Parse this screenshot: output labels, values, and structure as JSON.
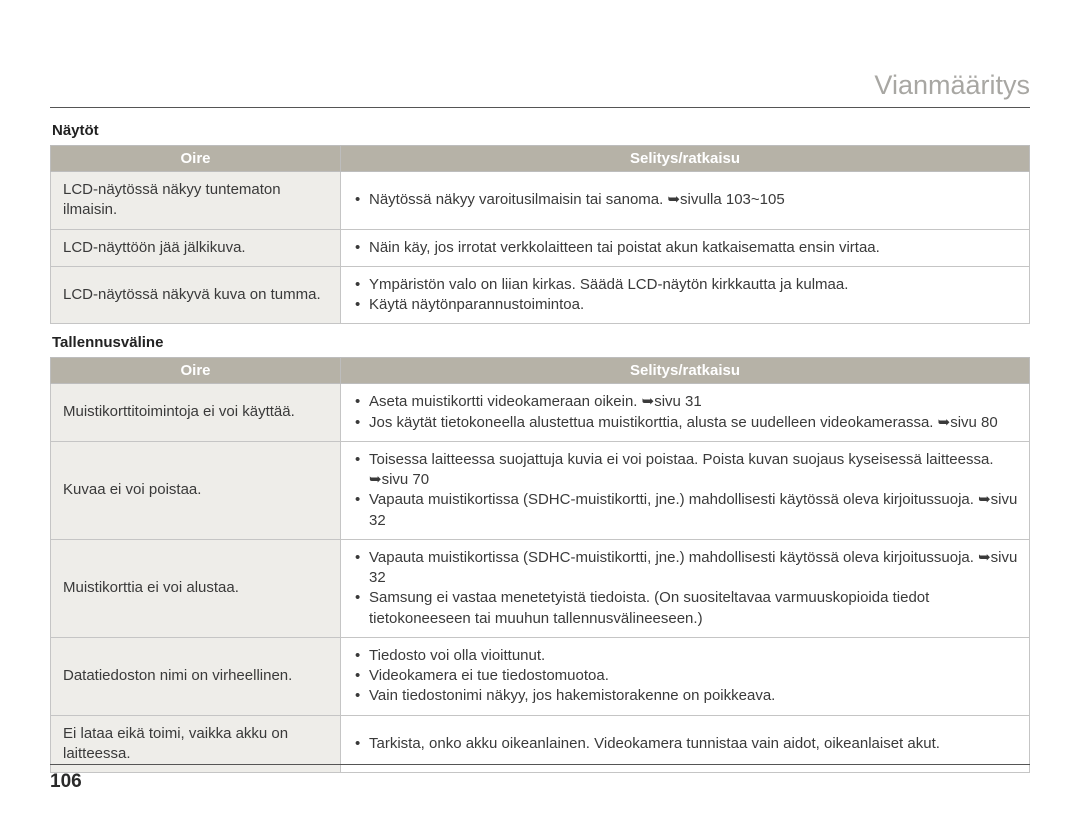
{
  "page": {
    "title": "Vianmääritys",
    "number": "106"
  },
  "arrow": "➥",
  "sections": [
    {
      "heading": "Näytöt",
      "columns": {
        "oire": "Oire",
        "ratkaisu": "Selitys/ratkaisu"
      },
      "rows": [
        {
          "oire": "LCD-näytössä näkyy tuntematon ilmaisin.",
          "bullets": [
            "Näytössä näkyy varoitusilmaisin tai sanoma. ➥sivulla 103~105"
          ]
        },
        {
          "oire": "LCD-näyttöön jää jälkikuva.",
          "bullets": [
            "Näin käy, jos irrotat verkkolaitteen tai poistat akun katkaisematta ensin virtaa."
          ]
        },
        {
          "oire": "LCD-näytössä näkyvä kuva on tumma.",
          "bullets": [
            "Ympäristön valo on liian kirkas. Säädä LCD-näytön kirkkautta ja kulmaa.",
            "Käytä näytönparannustoimintoa."
          ]
        }
      ]
    },
    {
      "heading": "Tallennusväline",
      "columns": {
        "oire": "Oire",
        "ratkaisu": "Selitys/ratkaisu"
      },
      "rows": [
        {
          "oire": "Muistikorttitoimintoja ei voi käyttää.",
          "bullets": [
            "Aseta muistikortti videokameraan oikein. ➥sivu 31",
            "Jos käytät tietokoneella alustettua muistikorttia, alusta se uudelleen videokamerassa. ➥sivu 80"
          ]
        },
        {
          "oire": "Kuvaa ei voi poistaa.",
          "bullets": [
            "Toisessa laitteessa suojattuja kuvia ei voi poistaa. Poista kuvan suojaus kyseisessä laitteessa. ➥sivu 70",
            "Vapauta muistikortissa (SDHC-muistikortti, jne.) mahdollisesti käytössä oleva kirjoitussuoja. ➥sivu 32"
          ]
        },
        {
          "oire": "Muistikorttia ei voi alustaa.",
          "bullets": [
            "Vapauta muistikortissa (SDHC-muistikortti, jne.) mahdollisesti käytössä oleva kirjoitussuoja. ➥sivu 32",
            "Samsung ei vastaa menetetyistä tiedoista. (On suositeltavaa varmuuskopioida tiedot tietokoneeseen tai muuhun tallennusvälineeseen.)"
          ]
        },
        {
          "oire": "Datatiedoston nimi on virheellinen.",
          "bullets": [
            "Tiedosto voi olla vioittunut.",
            "Videokamera ei tue tiedostomuotoa.",
            "Vain tiedostonimi näkyy, jos hakemistorakenne on poikkeava."
          ]
        },
        {
          "oire": "Ei lataa eikä toimi, vaikka akku on laitteessa.",
          "bullets": [
            "Tarkista, onko akku oikeanlainen. Videokamera tunnistaa vain aidot, oikeanlaiset akut."
          ]
        }
      ]
    }
  ]
}
